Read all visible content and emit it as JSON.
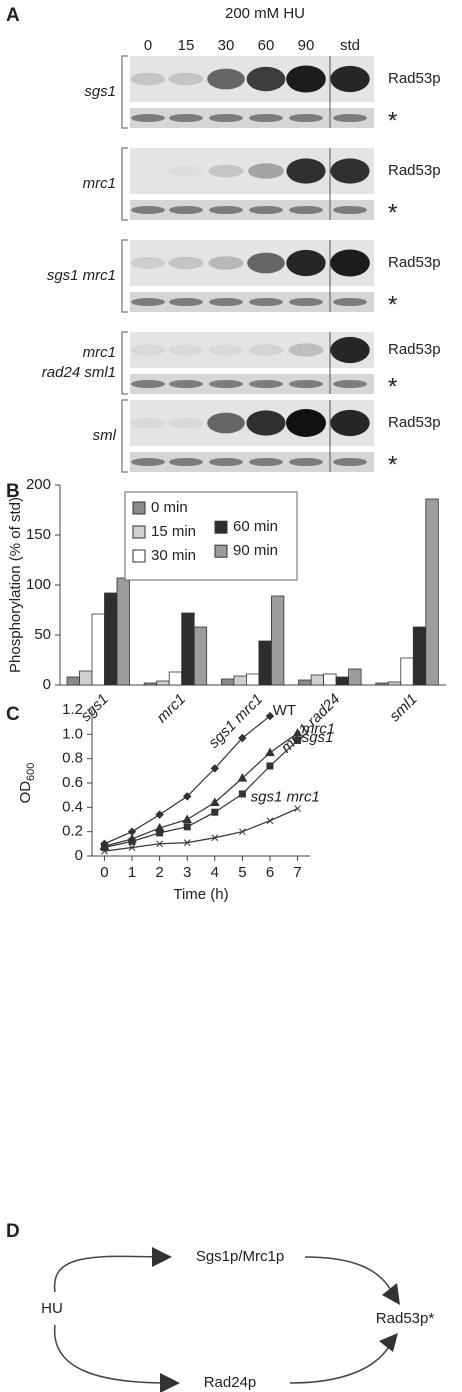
{
  "panel_labels": [
    "A",
    "B",
    "C",
    "D"
  ],
  "blot": {
    "treatment": "200 mM HU",
    "lanes": [
      "0",
      "15",
      "30",
      "60",
      "90",
      "std"
    ],
    "groups": [
      {
        "label_lines": [
          "sgs1"
        ],
        "band": "Rad53p",
        "loading": "*"
      },
      {
        "label_lines": [
          "mrc1"
        ],
        "band": "Rad53p",
        "loading": "*"
      },
      {
        "label_lines": [
          "sgs1 mrc1"
        ],
        "band": "Rad53p",
        "loading": "*"
      },
      {
        "label_lines": [
          "mrc1",
          "rad24 sml1"
        ],
        "band": "Rad53p",
        "loading": "*"
      },
      {
        "label_lines": [
          "sml"
        ],
        "band": "Rad53p",
        "loading": "*"
      }
    ]
  },
  "chart_data": [
    {
      "type": "bar",
      "y_label": "Phosphorylation (% of std)",
      "categories": [
        "sgs1",
        "mrc1",
        "sgs1 mrc1",
        "mrc1 rad24",
        "sml1"
      ],
      "series": [
        {
          "name": "0 min",
          "color": "#8a8a8a",
          "values": [
            8,
            2,
            6,
            5,
            2
          ]
        },
        {
          "name": "15 min",
          "color": "#cfcfcf",
          "values": [
            14,
            4,
            9,
            10,
            3
          ]
        },
        {
          "name": "30 min",
          "color": "#ffffff",
          "values": [
            71,
            13,
            11,
            11,
            27
          ]
        },
        {
          "name": "60 min",
          "color": "#2e2e2e",
          "values": [
            92,
            72,
            44,
            8,
            58
          ]
        },
        {
          "name": "90 min",
          "color": "#9c9c9c",
          "values": [
            107,
            58,
            89,
            16,
            186
          ]
        }
      ],
      "ylim": [
        0,
        200
      ],
      "yticks": [
        0,
        50,
        100,
        150,
        200
      ],
      "legend": "upper left"
    },
    {
      "type": "line",
      "x_label": "Time (h)",
      "y_label": "OD",
      "y_label_subscript": "600",
      "x": [
        0,
        1,
        2,
        3,
        4,
        5,
        6,
        7
      ],
      "series": [
        {
          "name": "WT",
          "color": "#333333",
          "marker": "diamond",
          "values": [
            0.1,
            0.2,
            0.34,
            0.49,
            0.72,
            0.97,
            1.15,
            null
          ]
        },
        {
          "name": "mrc1",
          "color": "#333333",
          "marker": "triangle",
          "values": [
            0.08,
            0.14,
            0.23,
            0.3,
            0.44,
            0.64,
            0.85,
            1.01
          ]
        },
        {
          "name": "sgs1",
          "color": "#333333",
          "marker": "square",
          "values": [
            0.07,
            0.12,
            0.19,
            0.24,
            0.36,
            0.51,
            0.74,
            0.95
          ]
        },
        {
          "name": "sgs1 mrc1",
          "color": "#333333",
          "marker": "cross",
          "values": [
            0.04,
            0.07,
            0.1,
            0.11,
            0.15,
            0.2,
            0.29,
            0.39
          ]
        }
      ],
      "xlim": [
        -0.45,
        7.45
      ],
      "xticks": [
        0,
        1,
        2,
        3,
        4,
        5,
        6,
        7
      ],
      "ylim": [
        0,
        1.2
      ],
      "yticks": [
        0,
        0.2,
        0.4,
        0.6,
        0.8,
        {
          "value": 1,
          "label": "1.0"
        },
        1.2
      ]
    }
  ],
  "diagram": {
    "nodes": [
      {
        "label": "HU"
      },
      {
        "label": "Sgs1p/Mrc1p"
      },
      {
        "label": "Rad24p"
      },
      {
        "label": "Rad53p*"
      }
    ]
  }
}
